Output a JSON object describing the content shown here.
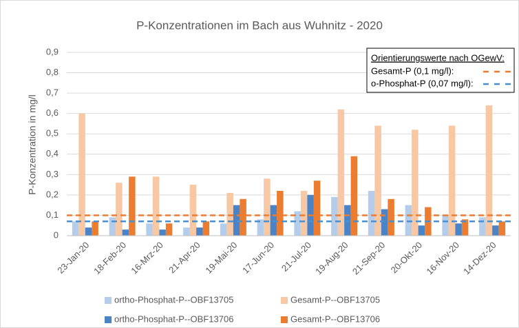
{
  "chart_data": {
    "type": "bar",
    "title": "P-Konzentrationen im Bach aus Wuhnitz - 2020",
    "y_label": "P-Konzentration in mg/l",
    "categories": [
      "23-Jan-20",
      "18-Feb-20",
      "16-Mrz-20",
      "21-Apr-20",
      "19-Mai-20",
      "17-Jun-20",
      "21-Jul-20",
      "19-Aug-20",
      "21-Sep-20",
      "20-Okt-20",
      "16-Nov-20",
      "14-Dez-20"
    ],
    "series": [
      {
        "name": "ortho-Phosphat-P--OBF13705",
        "color": "#b4cdea",
        "values": [
          0.07,
          0.09,
          0.06,
          0.04,
          0.06,
          0.08,
          0.12,
          0.19,
          0.22,
          0.15,
          0.1,
          0.09
        ]
      },
      {
        "name": "Gesamt-P--OBF13705",
        "color": "#f8c8a4",
        "values": [
          0.6,
          0.26,
          0.29,
          0.25,
          0.21,
          0.28,
          0.22,
          0.62,
          0.54,
          0.52,
          0.54,
          0.64
        ]
      },
      {
        "name": "ortho-Phosphat-P--OBF13706",
        "color": "#4a84c6",
        "values": [
          0.04,
          0.03,
          0.03,
          0.04,
          0.15,
          0.15,
          0.2,
          0.15,
          0.13,
          0.05,
          0.06,
          0.05
        ]
      },
      {
        "name": "Gesamt-P--OBF13706",
        "color": "#ec7c30",
        "values": [
          0.07,
          0.29,
          0.06,
          0.07,
          0.18,
          0.22,
          0.27,
          0.39,
          0.18,
          0.14,
          0.08,
          0.07
        ]
      }
    ],
    "reference_legend_title": "Orientierungswerte nach OGewV:",
    "reference_lines": [
      {
        "name": "Gesamt-P (0,1 mg/l):",
        "color": "#ec7c30",
        "value": 0.1
      },
      {
        "name": "o-Phosphat-P (0,07 mg/l):",
        "color": "#4a90d0",
        "value": 0.07
      }
    ],
    "ylim": [
      0,
      0.9
    ],
    "yticks": [
      0,
      {
        "value": 0.1,
        "label": "0,1"
      },
      {
        "value": 0.2,
        "label": "0,2"
      },
      {
        "value": 0.3,
        "label": "0,3"
      },
      {
        "value": 0.4,
        "label": "0,4"
      },
      {
        "value": 0.5,
        "label": "0,5"
      },
      {
        "value": 0.6,
        "label": "0,6"
      },
      {
        "value": 0.7,
        "label": "0,7"
      },
      {
        "value": 0.8,
        "label": "0,8"
      },
      {
        "value": 0.9,
        "label": "0,9"
      }
    ],
    "grid": true
  }
}
